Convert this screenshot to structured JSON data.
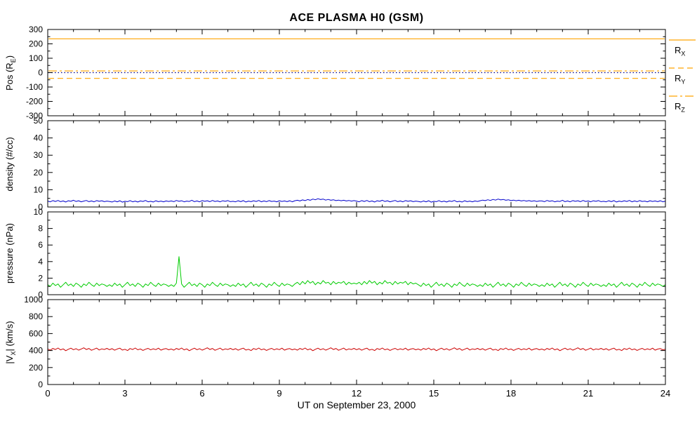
{
  "chart_data": {
    "type": "line",
    "title": "ACE PLASMA H0 (GSM)",
    "xlabel": "UT on September 23, 2000",
    "xmin": 0,
    "xmax": 24,
    "xstep": 3,
    "xminor": 1,
    "xticks": [
      0,
      3,
      6,
      9,
      12,
      15,
      18,
      21,
      24
    ],
    "sample_interval_hours": 0.1,
    "legend": {
      "entries": [
        {
          "pre": "R",
          "sub": "X",
          "style": "solid",
          "color": "#FFA500"
        },
        {
          "pre": "R",
          "sub": "Y",
          "style": "dash",
          "color": "#FFA500"
        },
        {
          "pre": "R",
          "sub": "Z",
          "style": "dashdot",
          "color": "#FFA500"
        }
      ]
    },
    "panels": [
      {
        "id": "pos",
        "ylabel": {
          "pre": "Pos (R",
          "sub": "E",
          "post": ")"
        },
        "ymin": -300,
        "ymax": 300,
        "yminor": 50,
        "yticks": [
          -300,
          -200,
          -100,
          0,
          100,
          200,
          300
        ],
        "hlines": [
          {
            "name": "RX",
            "value": 235,
            "style": "solid",
            "color": "#FFA500"
          },
          {
            "name": "RY",
            "value": -40,
            "style": "dash",
            "color": "#FFA500"
          },
          {
            "name": "RZ",
            "value": 12,
            "style": "dashdot",
            "color": "#FFA500"
          },
          {
            "name": "zero",
            "value": 0,
            "style": "dot",
            "color": "#00008B"
          }
        ]
      },
      {
        "id": "density",
        "ylabel": {
          "pre": "density (#/cc)",
          "sub": "",
          "post": ""
        },
        "ymin": 0,
        "ymax": 50,
        "yminor": 5,
        "yticks": [
          0,
          10,
          20,
          30,
          40,
          50
        ],
        "series": {
          "name": "proton density",
          "color": "#0000CC",
          "values": [
            3.4,
            3.0,
            3.7,
            3.2,
            3.8,
            3.1,
            3.5,
            2.9,
            3.6,
            3.3,
            3.9,
            3.2,
            3.6,
            3.0,
            3.4,
            3.8,
            3.1,
            3.5,
            3.0,
            3.7,
            3.3,
            3.6,
            3.1,
            3.4,
            3.2,
            2.9,
            3.5,
            3.0,
            3.6,
            2.8,
            3.3,
            3.1,
            3.7,
            3.0,
            3.4,
            2.9,
            3.5,
            3.2,
            3.8,
            3.0,
            3.3,
            2.9,
            3.6,
            3.1,
            3.4,
            3.0,
            3.5,
            3.2,
            3.5,
            3.1,
            3.8,
            3.3,
            3.6,
            3.0,
            3.4,
            3.2,
            3.9,
            3.1,
            3.5,
            3.0,
            3.7,
            3.3,
            3.6,
            3.1,
            3.8,
            3.2,
            3.5,
            3.0,
            3.6,
            3.3,
            3.7,
            3.1,
            3.3,
            3.0,
            3.6,
            3.1,
            3.7,
            2.9,
            3.4,
            3.1,
            3.6,
            3.2,
            3.8,
            3.0,
            3.5,
            3.1,
            3.7,
            3.2,
            3.4,
            3.0,
            3.6,
            3.2,
            3.5,
            3.1,
            3.6,
            3.0,
            3.6,
            3.9,
            3.5,
            4.1,
            3.7,
            4.3,
            3.9,
            4.6,
            4.2,
            4.8,
            4.3,
            4.6,
            4.0,
            4.4,
            3.9,
            4.2,
            3.7,
            4.0,
            3.6,
            3.9,
            3.5,
            3.8,
            3.4,
            3.7,
            3.4,
            3.0,
            3.7,
            3.2,
            3.8,
            3.1,
            3.5,
            2.9,
            3.6,
            3.3,
            3.9,
            3.2,
            3.6,
            3.0,
            3.4,
            3.8,
            3.1,
            3.5,
            3.0,
            3.7,
            3.3,
            3.6,
            3.1,
            3.4,
            3.2,
            2.9,
            3.5,
            3.0,
            3.6,
            2.8,
            3.3,
            3.1,
            3.7,
            3.0,
            3.4,
            2.9,
            3.5,
            3.2,
            3.8,
            3.0,
            3.3,
            2.9,
            3.6,
            3.1,
            3.4,
            3.0,
            3.5,
            3.2,
            3.6,
            4.0,
            3.7,
            4.2,
            3.8,
            4.4,
            4.0,
            4.6,
            4.1,
            4.4,
            3.9,
            4.2,
            3.7,
            4.0,
            3.6,
            3.9,
            3.5,
            3.8,
            3.4,
            3.7,
            3.3,
            3.6,
            3.2,
            3.5,
            3.5,
            3.1,
            3.8,
            3.3,
            3.6,
            3.0,
            3.4,
            3.2,
            3.9,
            3.1,
            3.5,
            3.0,
            3.7,
            3.3,
            3.6,
            3.1,
            3.8,
            3.2,
            3.5,
            3.0,
            3.6,
            3.3,
            3.7,
            3.1,
            3.3,
            3.0,
            3.6,
            3.1,
            3.7,
            2.9,
            3.4,
            3.1,
            3.6,
            3.2,
            3.8,
            3.0,
            3.5,
            3.1,
            3.7,
            3.2,
            3.4,
            3.0,
            3.6,
            3.2,
            3.5,
            3.1,
            3.6,
            3.0,
            3.4
          ]
        }
      },
      {
        "id": "pressure",
        "ylabel": {
          "pre": "pressure (nPa)",
          "sub": "",
          "post": ""
        },
        "ymin": 0,
        "ymax": 10,
        "yminor": 1,
        "yticks": [
          0,
          2,
          4,
          6,
          8,
          10
        ],
        "series": {
          "name": "flow pressure",
          "color": "#00CC00",
          "values": [
            1.2,
            1.0,
            1.4,
            1.1,
            1.3,
            0.9,
            1.2,
            1.5,
            1.1,
            1.3,
            1.0,
            1.4,
            1.2,
            0.9,
            1.3,
            1.1,
            1.5,
            1.2,
            1.0,
            1.4,
            1.1,
            1.3,
            1.2,
            1.0,
            1.2,
            1.0,
            1.4,
            1.1,
            1.3,
            0.9,
            1.2,
            1.5,
            1.1,
            1.3,
            1.0,
            1.4,
            1.2,
            0.9,
            1.3,
            1.1,
            1.5,
            1.2,
            1.0,
            1.4,
            1.1,
            1.3,
            1.2,
            1.0,
            1.2,
            1.0,
            1.4,
            4.6,
            1.3,
            0.9,
            1.2,
            1.5,
            1.1,
            1.3,
            1.0,
            1.4,
            1.2,
            0.9,
            1.3,
            1.1,
            1.5,
            1.2,
            1.0,
            1.4,
            1.1,
            1.3,
            1.2,
            1.0,
            1.2,
            1.0,
            1.4,
            1.1,
            1.3,
            0.9,
            1.2,
            1.5,
            1.1,
            1.3,
            1.0,
            1.4,
            1.2,
            0.9,
            1.3,
            1.1,
            1.5,
            1.2,
            1.0,
            1.4,
            1.1,
            1.3,
            1.2,
            1.0,
            1.3,
            1.5,
            1.2,
            1.6,
            1.3,
            1.7,
            1.4,
            1.6,
            1.2,
            1.5,
            1.3,
            1.7,
            1.4,
            1.5,
            1.2,
            1.6,
            1.3,
            1.5,
            1.4,
            1.6,
            1.2,
            1.5,
            1.3,
            1.4,
            1.3,
            1.5,
            1.2,
            1.6,
            1.3,
            1.7,
            1.4,
            1.6,
            1.2,
            1.5,
            1.3,
            1.7,
            1.4,
            1.5,
            1.2,
            1.6,
            1.3,
            1.5,
            1.4,
            1.6,
            1.2,
            1.5,
            1.3,
            1.4,
            1.2,
            1.0,
            1.4,
            1.1,
            1.3,
            0.9,
            1.2,
            1.5,
            1.1,
            1.3,
            1.0,
            1.4,
            1.2,
            0.9,
            1.3,
            1.1,
            1.5,
            1.2,
            1.0,
            1.4,
            1.1,
            1.3,
            1.2,
            1.0,
            1.2,
            1.0,
            1.4,
            1.1,
            1.3,
            0.9,
            1.2,
            1.5,
            1.1,
            1.3,
            1.0,
            1.4,
            1.2,
            0.9,
            1.3,
            1.1,
            1.5,
            1.2,
            1.0,
            1.4,
            1.1,
            1.3,
            1.2,
            1.0,
            1.2,
            1.0,
            1.4,
            1.1,
            1.3,
            0.9,
            1.2,
            1.5,
            1.1,
            1.3,
            1.0,
            1.4,
            1.2,
            0.9,
            1.3,
            1.1,
            1.5,
            1.2,
            1.0,
            1.4,
            1.1,
            1.3,
            1.2,
            1.0,
            1.2,
            1.0,
            1.4,
            1.1,
            1.3,
            0.9,
            1.2,
            1.5,
            1.1,
            1.3,
            1.0,
            1.4,
            1.2,
            0.9,
            1.3,
            1.1,
            1.5,
            1.2,
            1.0,
            1.4,
            1.1,
            1.3,
            1.2,
            1.0,
            1.2
          ]
        }
      },
      {
        "id": "vx",
        "ylabel": {
          "pre": "|V",
          "sub": "X",
          "post": "| (km/s)"
        },
        "ymin": 0,
        "ymax": 1000,
        "yminor": 100,
        "yticks": [
          0,
          200,
          400,
          600,
          800,
          1000
        ],
        "series": {
          "name": "x flow speed",
          "color": "#CC0000",
          "values": [
            418,
            405,
            425,
            412,
            430,
            408,
            420,
            398,
            415,
            428,
            410,
            422,
            405,
            418,
            432,
            412,
            425,
            403,
            416,
            429,
            407,
            420,
            412,
            426,
            410,
            422,
            404,
            418,
            428,
            406,
            415,
            400,
            424,
            412,
            430,
            409,
            419,
            402,
            416,
            426,
            408,
            421,
            411,
            428,
            405,
            417,
            423,
            409,
            418,
            405,
            425,
            412,
            430,
            408,
            420,
            398,
            415,
            428,
            410,
            422,
            405,
            418,
            432,
            412,
            425,
            403,
            416,
            429,
            407,
            420,
            412,
            426,
            410,
            422,
            404,
            418,
            428,
            406,
            415,
            400,
            424,
            412,
            430,
            409,
            419,
            402,
            416,
            426,
            408,
            421,
            411,
            428,
            405,
            417,
            423,
            409,
            418,
            405,
            425,
            412,
            430,
            408,
            420,
            398,
            415,
            428,
            410,
            422,
            405,
            418,
            432,
            412,
            425,
            403,
            416,
            429,
            407,
            420,
            412,
            426,
            410,
            422,
            404,
            418,
            428,
            406,
            415,
            400,
            424,
            412,
            430,
            409,
            419,
            402,
            416,
            426,
            408,
            421,
            411,
            428,
            405,
            417,
            423,
            409,
            418,
            405,
            425,
            412,
            430,
            408,
            420,
            398,
            415,
            428,
            410,
            422,
            405,
            418,
            432,
            412,
            425,
            403,
            416,
            429,
            407,
            420,
            412,
            426,
            410,
            422,
            404,
            418,
            428,
            406,
            415,
            400,
            424,
            412,
            430,
            409,
            419,
            402,
            416,
            426,
            408,
            421,
            411,
            428,
            405,
            417,
            423,
            409,
            418,
            405,
            425,
            412,
            430,
            408,
            420,
            398,
            415,
            428,
            410,
            422,
            405,
            418,
            432,
            412,
            425,
            403,
            416,
            429,
            407,
            420,
            412,
            426,
            410,
            422,
            404,
            418,
            428,
            406,
            415,
            400,
            424,
            412,
            430,
            409,
            419,
            402,
            416,
            426,
            408,
            421,
            411,
            428,
            405,
            417,
            423,
            409,
            415
          ]
        }
      }
    ]
  }
}
